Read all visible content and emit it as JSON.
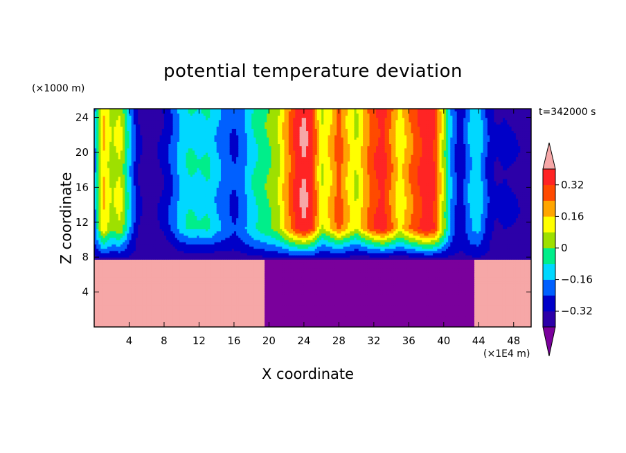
{
  "chart_data": {
    "type": "heatmap",
    "title": "potential temperature deviation",
    "xlabel": "X coordinate",
    "ylabel": "Z coordinate",
    "x_unit": "(×1E4 m)",
    "z_unit": "(×1000 m)",
    "timestamp": "t=342000 s",
    "xlim": [
      0,
      50
    ],
    "ylim": [
      0,
      25
    ],
    "x_ticks": [
      4,
      8,
      12,
      16,
      20,
      24,
      28,
      32,
      36,
      40,
      44,
      48
    ],
    "y_ticks": [
      4,
      8,
      12,
      16,
      20,
      24
    ],
    "colorbar": {
      "tick_labels": [
        "0.32",
        "0.16",
        "0",
        "−0.16",
        "−0.32"
      ],
      "levels": [
        -0.4,
        -0.32,
        -0.24,
        -0.16,
        -0.08,
        0,
        0.08,
        0.16,
        0.24,
        0.32,
        0.4
      ],
      "colors": [
        "#7a009c",
        "#2c00a8",
        "#0000c8",
        "#0060ff",
        "#00d8ff",
        "#00ee8a",
        "#9ee000",
        "#ffff00",
        "#ffa500",
        "#ff4a00",
        "#ff2424",
        "#f6a7a7"
      ],
      "extend": "both"
    },
    "lower_layer_top_z": 7.8,
    "lower_layer_x_ranges": [
      {
        "x": [
          0,
          19.5
        ],
        "value": 0.42,
        "note": "warm"
      },
      {
        "x": [
          19.5,
          43.5
        ],
        "value": -0.45,
        "note": "cold"
      },
      {
        "x": [
          43.5,
          50
        ],
        "value": 0.42,
        "note": "warm"
      }
    ],
    "upper_layer_profile": {
      "x": [
        0,
        1,
        2,
        3,
        4,
        5,
        6,
        7,
        8,
        9,
        10,
        11,
        12,
        13,
        14,
        15,
        16,
        17,
        18,
        19,
        20,
        21,
        22,
        23,
        24,
        25,
        26,
        27,
        28,
        29,
        30,
        31,
        32,
        33,
        34,
        35,
        36,
        37,
        38,
        39,
        40,
        41,
        42,
        43,
        44,
        45,
        46,
        47,
        48,
        49,
        50
      ],
      "value": [
        -0.2,
        0.18,
        0.05,
        0.1,
        -0.12,
        -0.3,
        -0.38,
        -0.35,
        -0.3,
        -0.22,
        -0.12,
        -0.08,
        -0.1,
        -0.08,
        -0.15,
        -0.2,
        -0.25,
        -0.2,
        -0.1,
        -0.05,
        0.0,
        0.06,
        0.2,
        0.34,
        0.42,
        0.33,
        0.08,
        0.16,
        0.28,
        0.16,
        0.07,
        0.2,
        0.3,
        0.36,
        0.24,
        0.1,
        0.22,
        0.3,
        0.38,
        0.32,
        0.05,
        -0.2,
        -0.3,
        -0.15,
        -0.1,
        -0.25,
        -0.32,
        -0.3,
        -0.32,
        -0.35,
        -0.38
      ]
    }
  }
}
